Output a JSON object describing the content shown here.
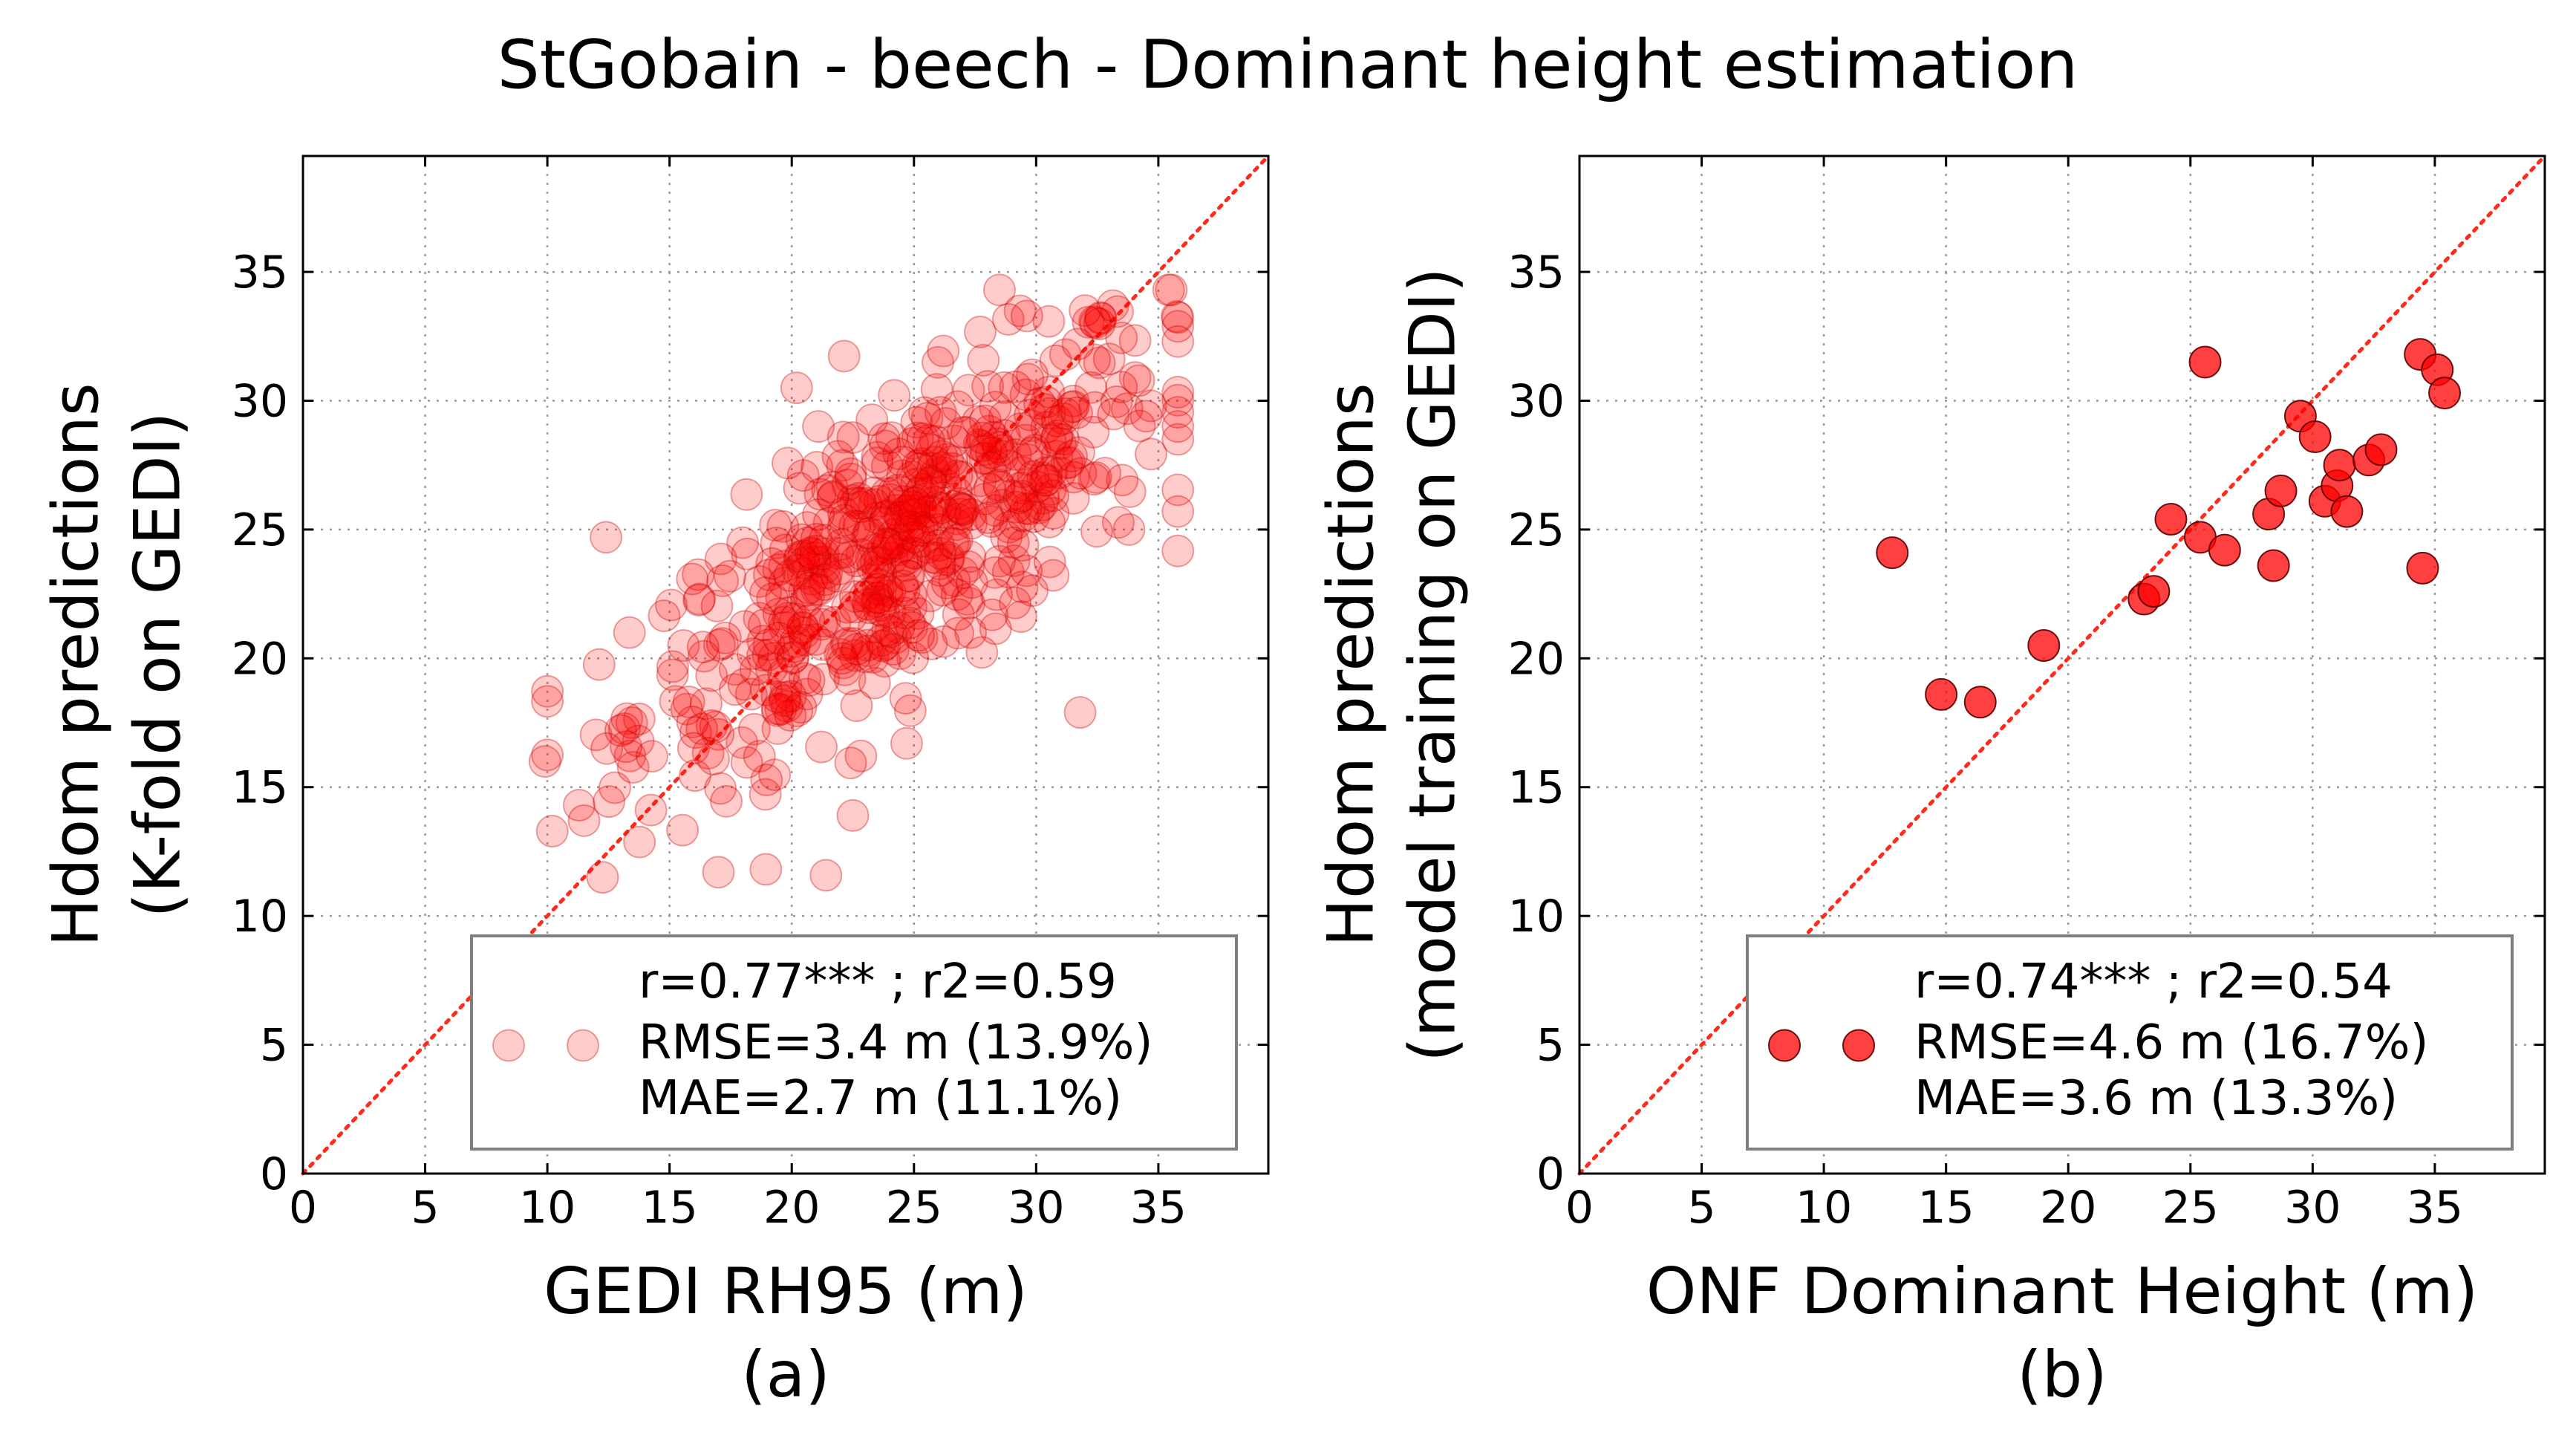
{
  "title": "StGobain - beech - Dominant height estimation",
  "colors": {
    "marker": "#ff0000",
    "diagonal": "#ff2a1a",
    "grid": "#9a9a9a",
    "legend_border": "#7f7f7f"
  },
  "chart_data": [
    {
      "type": "scatter",
      "panel_label": "(a)",
      "xlabel": "GEDI RH95 (m)",
      "ylabel_line1": "Hdom predictions",
      "ylabel_line2": "(K-fold on GEDI)",
      "xlim": [
        0,
        39.5
      ],
      "ylim": [
        0,
        39.5
      ],
      "xticks": [
        0,
        5,
        10,
        15,
        20,
        25,
        30,
        35
      ],
      "yticks": [
        0,
        5,
        10,
        15,
        20,
        25,
        30,
        35
      ],
      "grid": true,
      "diagonal": "1:1 dotted line",
      "marker_opacity": 0.2,
      "legend_position": "lower-right",
      "stats": {
        "r": "r=0.77*** ; r2=0.59",
        "rmse": "RMSE=3.4 m (13.9%)",
        "mae": "MAE=2.7 m (11.1%)"
      },
      "n_points": 600,
      "distribution": {
        "x_mean": 24.5,
        "x_sd": 5.4,
        "x_min": 10.0,
        "x_max": 35.8,
        "slope": 0.6,
        "intercept": 9.6,
        "resid_sd": 2.7
      },
      "outliers": [
        {
          "x": 12.4,
          "y": 24.7
        },
        {
          "x": 13.0,
          "y": 17.2
        },
        {
          "x": 11.3,
          "y": 14.3
        },
        {
          "x": 9.9,
          "y": 16.0
        },
        {
          "x": 17.0,
          "y": 11.7
        },
        {
          "x": 31.8,
          "y": 17.9
        },
        {
          "x": 28.5,
          "y": 34.3
        },
        {
          "x": 32.0,
          "y": 33.5
        },
        {
          "x": 35.8,
          "y": 29.0
        },
        {
          "x": 35.8,
          "y": 28.5
        },
        {
          "x": 20.2,
          "y": 30.5
        },
        {
          "x": 22.5,
          "y": 13.9
        },
        {
          "x": 24.7,
          "y": 16.7
        },
        {
          "x": 33.8,
          "y": 25.0
        },
        {
          "x": 11.5,
          "y": 13.7
        }
      ]
    },
    {
      "type": "scatter",
      "panel_label": "(b)",
      "xlabel": "ONF Dominant Height (m)",
      "ylabel_line1": "Hdom predictions",
      "ylabel_line2": "(model training on GEDI)",
      "xlim": [
        0,
        39.5
      ],
      "ylim": [
        0,
        39.5
      ],
      "xticks": [
        0,
        5,
        10,
        15,
        20,
        25,
        30,
        35
      ],
      "yticks": [
        0,
        5,
        10,
        15,
        20,
        25,
        30,
        35
      ],
      "grid": true,
      "diagonal": "1:1 dotted line",
      "marker_opacity": 0.75,
      "legend_position": "lower-right",
      "stats": {
        "r": "r=0.74*** ; r2=0.54",
        "rmse": "RMSE=4.6 m (16.7%)",
        "mae": "MAE=3.6 m (13.3%)"
      },
      "points": [
        {
          "x": 12.8,
          "y": 24.1
        },
        {
          "x": 14.8,
          "y": 18.6
        },
        {
          "x": 16.4,
          "y": 18.3
        },
        {
          "x": 19.0,
          "y": 20.5
        },
        {
          "x": 23.1,
          "y": 22.3
        },
        {
          "x": 23.5,
          "y": 22.6
        },
        {
          "x": 24.2,
          "y": 25.4
        },
        {
          "x": 25.4,
          "y": 24.7
        },
        {
          "x": 25.6,
          "y": 31.5
        },
        {
          "x": 26.4,
          "y": 24.2
        },
        {
          "x": 28.2,
          "y": 25.6
        },
        {
          "x": 28.4,
          "y": 23.6
        },
        {
          "x": 28.7,
          "y": 26.5
        },
        {
          "x": 29.5,
          "y": 29.4
        },
        {
          "x": 30.1,
          "y": 28.6
        },
        {
          "x": 30.5,
          "y": 26.1
        },
        {
          "x": 31.0,
          "y": 26.7
        },
        {
          "x": 31.1,
          "y": 27.5
        },
        {
          "x": 31.4,
          "y": 25.7
        },
        {
          "x": 32.3,
          "y": 27.7
        },
        {
          "x": 32.8,
          "y": 28.1
        },
        {
          "x": 34.4,
          "y": 31.8
        },
        {
          "x": 34.5,
          "y": 23.5
        },
        {
          "x": 35.1,
          "y": 31.2
        },
        {
          "x": 35.4,
          "y": 30.3
        }
      ]
    }
  ]
}
